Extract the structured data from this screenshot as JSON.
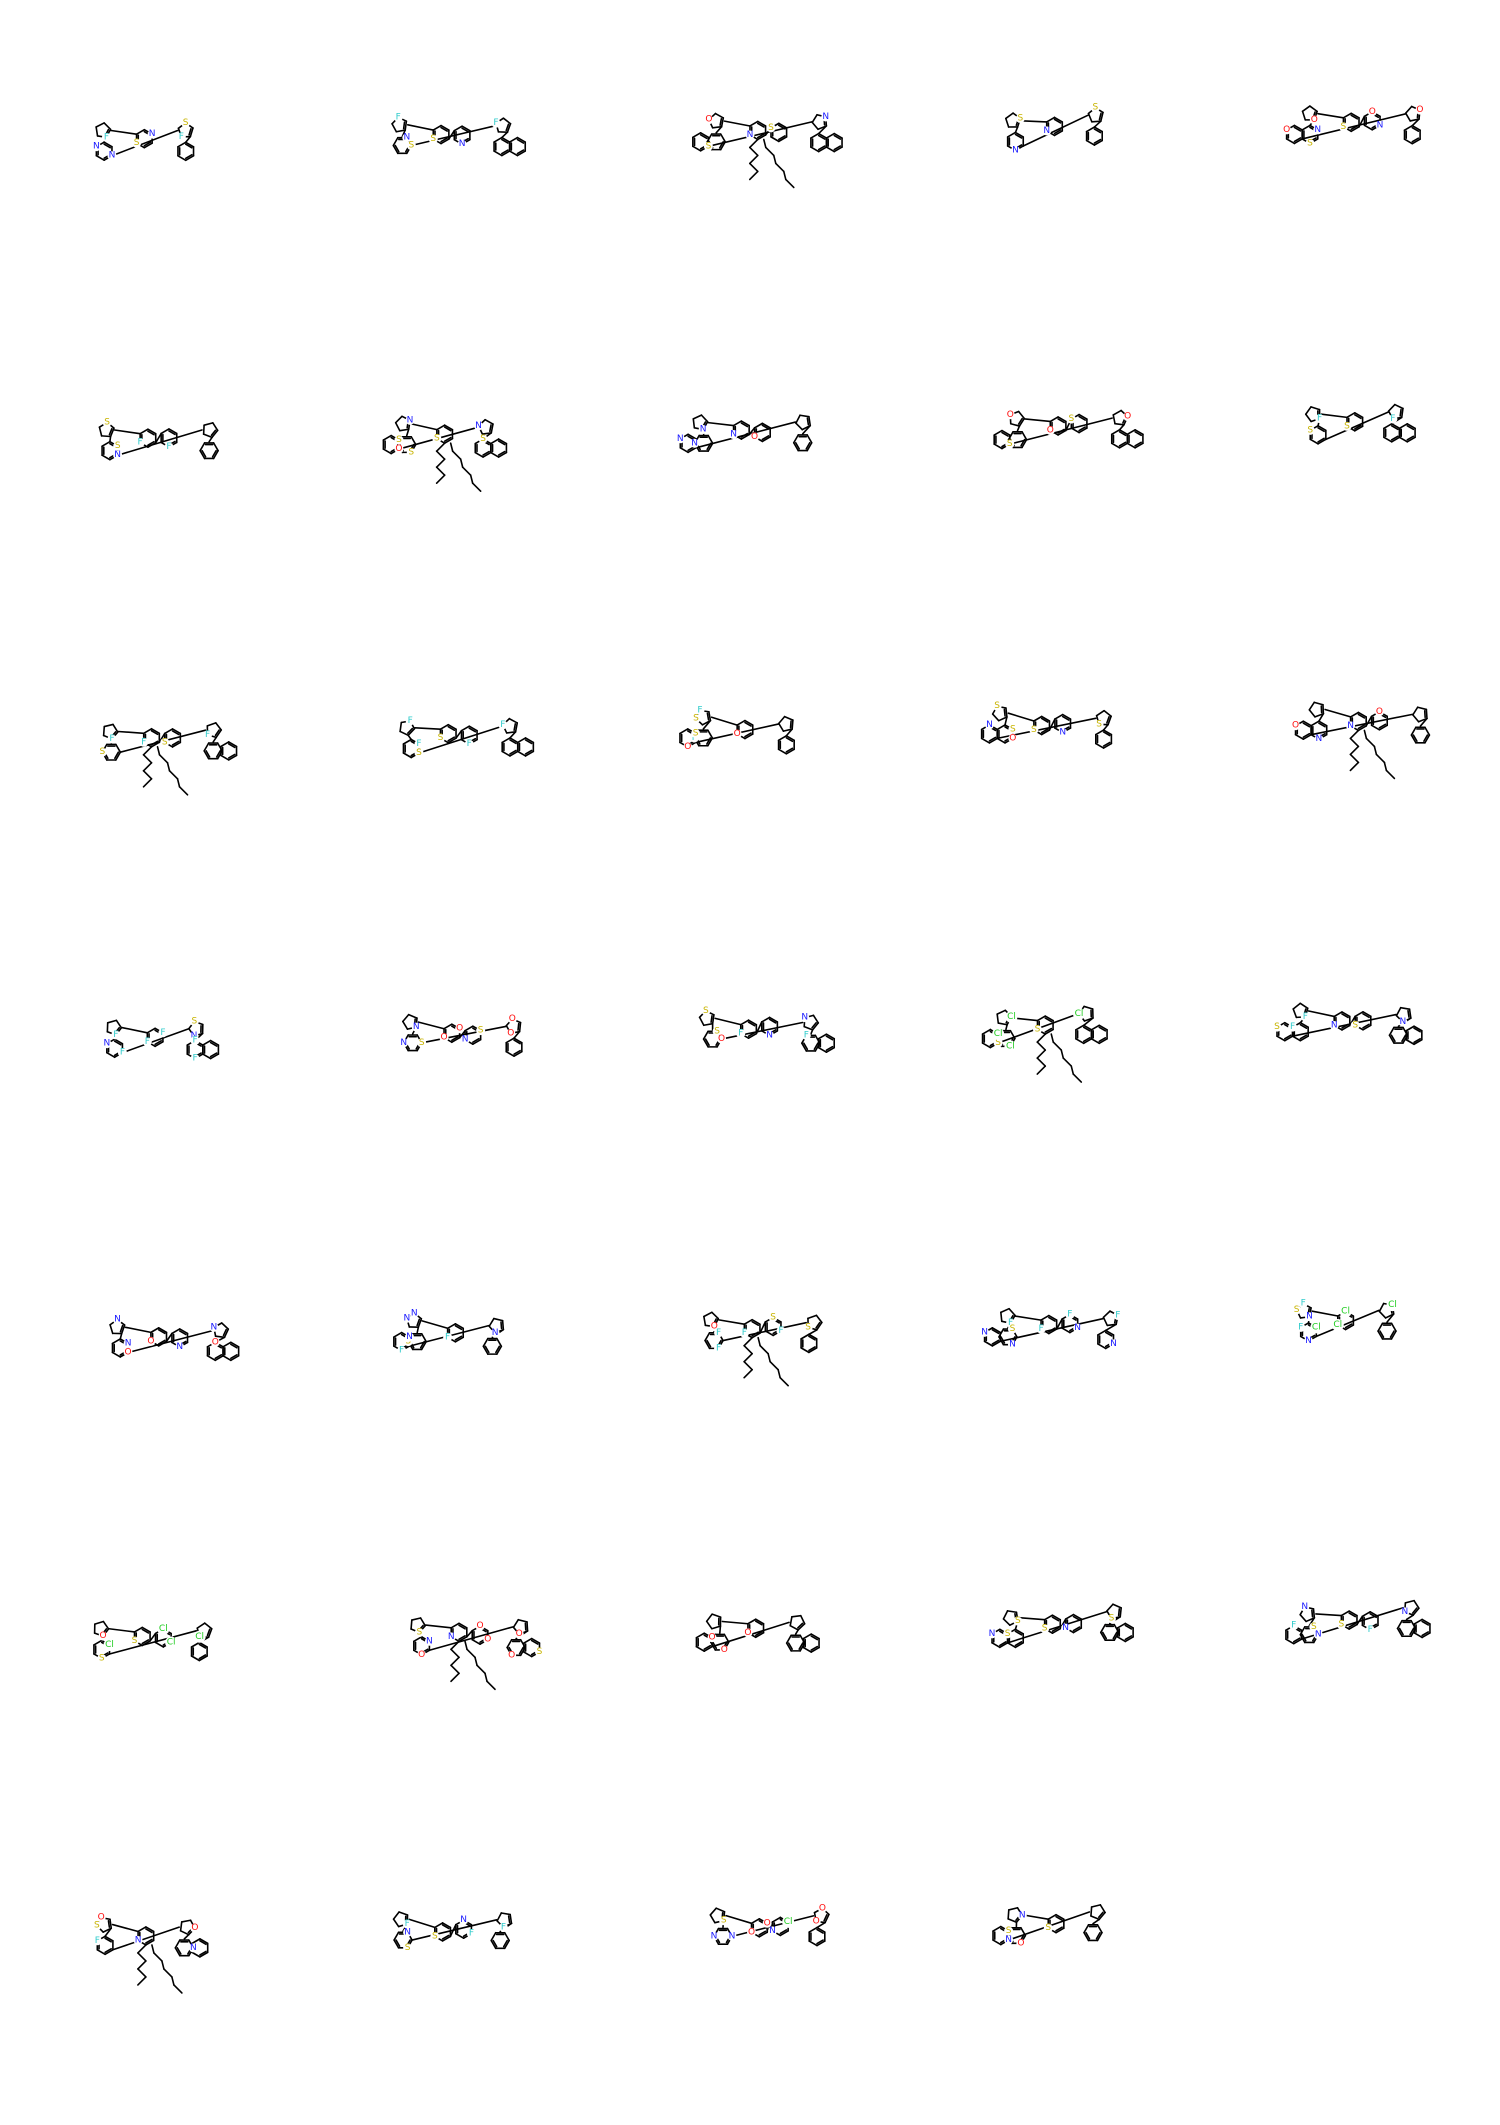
{
  "grid": {
    "columns": 5,
    "rows": 7,
    "count": 34
  },
  "colors": {
    "bond": "#000000",
    "S": "#c8b400",
    "N": "#1a1aff",
    "O": "#ff0d0d",
    "F": "#33cccc",
    "Cl": "#1fcc1f"
  },
  "molecules": [
    {
      "atoms": [
        "S",
        "N",
        "F",
        "N",
        "N",
        "S",
        "F"
      ]
    },
    {
      "atoms": [
        "S",
        "N",
        "F",
        "S",
        "N",
        "F"
      ]
    },
    {
      "atoms": [
        "N",
        "S",
        "O",
        "S",
        "N"
      ]
    },
    {
      "atoms": [
        "N",
        "S",
        "N",
        "S"
      ]
    },
    {
      "atoms": [
        "S",
        "N",
        "O",
        "O",
        "S",
        "N",
        "O",
        "O"
      ]
    },
    {
      "atoms": [
        "F",
        "F",
        "S",
        "N",
        "S"
      ]
    },
    {
      "atoms": [
        "S",
        "N",
        "S",
        "O",
        "S",
        "N",
        "S"
      ]
    },
    {
      "atoms": [
        "N",
        "O",
        "N",
        "N",
        "N"
      ]
    },
    {
      "atoms": [
        "O",
        "S",
        "O",
        "S",
        "O"
      ]
    },
    {
      "atoms": [
        "S",
        "F",
        "S",
        "F"
      ]
    },
    {
      "atoms": [
        "F",
        "S",
        "F",
        "S",
        "F"
      ]
    },
    {
      "atoms": [
        "S",
        "F",
        "F",
        "S",
        "F",
        "F"
      ]
    },
    {
      "atoms": [
        "O",
        "F",
        "S",
        "F",
        "O",
        "S"
      ]
    },
    {
      "atoms": [
        "S",
        "N",
        "S",
        "O",
        "S",
        "N",
        "S"
      ]
    },
    {
      "atoms": [
        "N",
        "O",
        "N",
        "O"
      ]
    },
    {
      "atoms": [
        "F",
        "F",
        "F",
        "F",
        "N",
        "S",
        "N",
        "F",
        "F"
      ]
    },
    {
      "atoms": [
        "O",
        "O",
        "N",
        "S",
        "N",
        "S",
        "N",
        "O",
        "O"
      ]
    },
    {
      "atoms": [
        "F",
        "N",
        "S",
        "O",
        "S",
        "N",
        "F"
      ]
    },
    {
      "atoms": [
        "S",
        "Cl",
        "Cl",
        "S",
        "Cl",
        "Cl"
      ]
    },
    {
      "atoms": [
        "N",
        "S",
        "F",
        "F",
        "S",
        "N"
      ]
    },
    {
      "atoms": [
        "O",
        "N",
        "N",
        "O",
        "N",
        "N",
        "O"
      ]
    },
    {
      "atoms": [
        "F",
        "N",
        "N",
        "S",
        "F",
        "N",
        "N"
      ]
    },
    {
      "atoms": [
        "F",
        "F",
        "S",
        "O",
        "F",
        "F",
        "S"
      ]
    },
    {
      "atoms": [
        "F",
        "N",
        "F",
        "F",
        "N",
        "S",
        "N",
        "F",
        "N"
      ]
    },
    {
      "atoms": [
        "Cl",
        "Cl",
        "F",
        "N",
        "S",
        "N",
        "F",
        "Cl",
        "Cl"
      ]
    },
    {
      "atoms": [
        "S",
        "Cl",
        "Cl",
        "O",
        "S",
        "Cl",
        "Cl"
      ]
    },
    {
      "atoms": [
        "N",
        "O",
        "O",
        "S",
        "O",
        "N",
        "O",
        "O",
        "S"
      ]
    },
    {
      "atoms": [
        "O",
        "O",
        "O"
      ]
    },
    {
      "atoms": [
        "S",
        "N",
        "S",
        "S",
        "N",
        "S"
      ]
    },
    {
      "atoms": [
        "S",
        "F",
        "N",
        "N",
        "S",
        "F",
        "N"
      ]
    },
    {
      "atoms": [
        "N",
        "O",
        "S",
        "F",
        "O",
        "N"
      ]
    },
    {
      "atoms": [
        "S",
        "F",
        "N",
        "F",
        "S",
        "N",
        "F"
      ]
    },
    {
      "atoms": [
        "O",
        "O",
        "N",
        "Cl",
        "S",
        "N",
        "N",
        "O",
        "O"
      ]
    },
    {
      "atoms": [
        "S",
        "N",
        "O",
        "N",
        "S"
      ]
    }
  ]
}
